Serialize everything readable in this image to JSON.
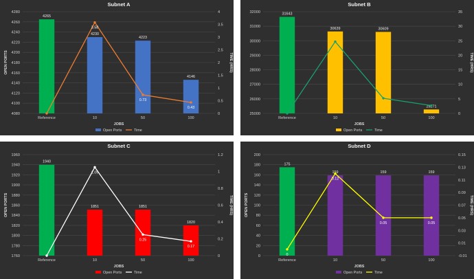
{
  "chart_data": [
    {
      "type": "bar",
      "title": "Subnet A",
      "xlabel": "JOBS",
      "ylabel": "OPEN PORTS",
      "y2label": "TIME (HRS)",
      "categories": [
        "Reference",
        "10",
        "50",
        "100"
      ],
      "ylim": [
        4080,
        4280
      ],
      "y_ticks": [
        4080,
        4100,
        4120,
        4140,
        4160,
        4180,
        4200,
        4220,
        4240,
        4260,
        4280
      ],
      "y2lim": [
        0,
        4
      ],
      "y2_ticks": [
        "0",
        "0.5",
        "1",
        "1.5",
        "2",
        "2.5",
        "3",
        "3.5",
        "4"
      ],
      "series": [
        {
          "name": "Open Ports",
          "kind": "bar",
          "values": [
            4265,
            4230,
            4223,
            4146
          ],
          "labels": [
            "4265",
            "4230",
            "4223",
            "4146"
          ]
        },
        {
          "name": "Time",
          "kind": "line",
          "axis": "secondary",
          "values": [
            0,
            3.58,
            0.73,
            0.43
          ],
          "labels": [
            "",
            "3.58",
            "0.73",
            "0.43"
          ]
        }
      ],
      "colors": {
        "ref_bar": "#00b050",
        "bar": "#4472c4",
        "line": "#ed7d31"
      },
      "legend": "bottom"
    },
    {
      "type": "bar",
      "title": "Subnet B",
      "xlabel": "JOBS",
      "ylabel": "",
      "y2label": "TIME (HRS)",
      "categories": [
        "Reference",
        "10",
        "50",
        "100"
      ],
      "ylim": [
        25000,
        32000
      ],
      "y_ticks": [
        25000,
        26000,
        27000,
        28000,
        29000,
        30000,
        31000,
        32000
      ],
      "y2lim": [
        0,
        35
      ],
      "y2_ticks": [
        "0",
        "5",
        "10",
        "15",
        "20",
        "25",
        "30",
        "35"
      ],
      "series": [
        {
          "name": "Open Ports",
          "kind": "bar",
          "values": [
            31643,
            30639,
            30609,
            25271
          ],
          "labels": [
            "31643",
            "30639",
            "30609",
            "25271"
          ]
        },
        {
          "name": "Time",
          "kind": "line",
          "axis": "secondary",
          "values": [
            0,
            24.7,
            5.2,
            2.7
          ],
          "labels": [
            "",
            "",
            "",
            ""
          ]
        }
      ],
      "colors": {
        "ref_bar": "#00b050",
        "bar": "#ffc000",
        "line": "#1aa06d"
      },
      "legend": "bottom"
    },
    {
      "type": "bar",
      "title": "Subnet C",
      "xlabel": "JOBS",
      "ylabel": "OPEN PORTS",
      "y2label": "TIME (HRS)",
      "categories": [
        "Reference",
        "10",
        "50",
        "100"
      ],
      "ylim": [
        1760,
        1960
      ],
      "y_ticks": [
        1760,
        1780,
        1800,
        1820,
        1840,
        1860,
        1880,
        1900,
        1920,
        1940,
        1960
      ],
      "y2lim": [
        0,
        1.2
      ],
      "y2_ticks": [
        "0",
        "0.2",
        "0.4",
        "0.6",
        "0.8",
        "1",
        "1.2"
      ],
      "series": [
        {
          "name": "Open Ports",
          "kind": "bar",
          "values": [
            1940,
            1851,
            1851,
            1820
          ],
          "labels": [
            "1940",
            "1851",
            "1851",
            "1820"
          ]
        },
        {
          "name": "Time",
          "kind": "line",
          "axis": "secondary",
          "values": [
            0,
            1.05,
            0.25,
            0.17
          ],
          "labels": [
            "",
            "1.05",
            "0.25",
            "0.17"
          ]
        }
      ],
      "colors": {
        "ref_bar": "#00b050",
        "bar": "#ff0000",
        "line": "#ffffff"
      },
      "legend": "bottom"
    },
    {
      "type": "bar",
      "title": "Subnet D",
      "xlabel": "JOBS",
      "ylabel": "OPEN PORTS",
      "y2label": "TIME (HRS)",
      "categories": [
        "Reference",
        "10",
        "50",
        "100"
      ],
      "ylim": [
        0,
        200
      ],
      "y_ticks": [
        0,
        20,
        40,
        60,
        80,
        100,
        120,
        140,
        160,
        180,
        200
      ],
      "y2lim": [
        -0.01,
        0.15
      ],
      "y2_ticks": [
        "-0.01",
        "0.01",
        "0.03",
        "0.05",
        "0.07",
        "0.09",
        "0.11",
        "0.13",
        "0.15"
      ],
      "series": [
        {
          "name": "Open Ports",
          "kind": "bar",
          "values": [
            175,
            159,
            159,
            159
          ],
          "labels": [
            "175",
            "159",
            "159",
            "159"
          ]
        },
        {
          "name": "Time",
          "kind": "line",
          "axis": "secondary",
          "values": [
            0,
            0.12,
            0.05,
            0.05
          ],
          "labels": [
            "0",
            "0.12",
            "0.05",
            "0.05"
          ]
        }
      ],
      "colors": {
        "ref_bar": "#00b050",
        "bar": "#7030a0",
        "line": "#ffff00"
      },
      "legend": "bottom"
    }
  ]
}
